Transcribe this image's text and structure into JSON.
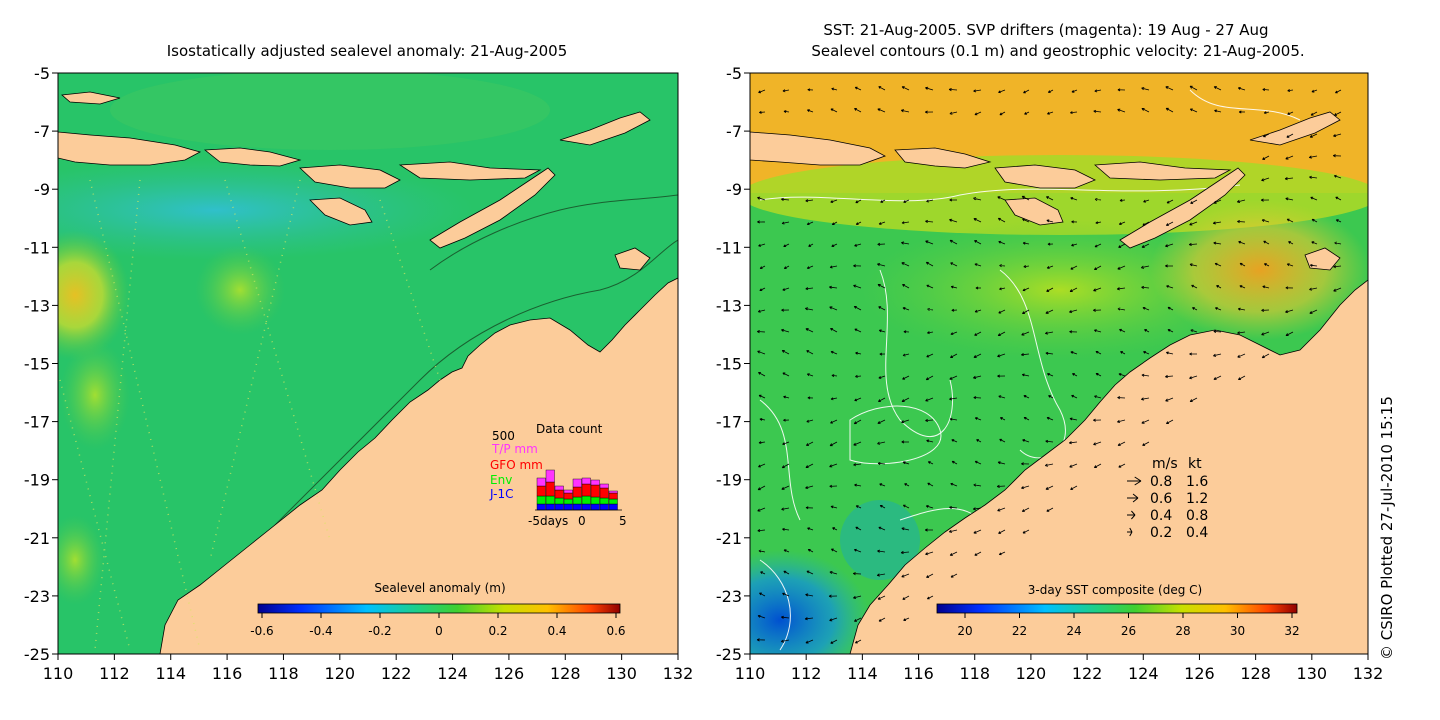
{
  "left_panel": {
    "title": "Isostatically adjusted sealevel anomaly: 21-Aug-2005",
    "x_ticks": [
      "110",
      "112",
      "114",
      "116",
      "118",
      "120",
      "122",
      "124",
      "126",
      "128",
      "130",
      "132"
    ],
    "y_ticks": [
      "-5",
      "-7",
      "-9",
      "-11",
      "-13",
      "-15",
      "-17",
      "-19",
      "-21",
      "-23",
      "-25"
    ],
    "colorbar": {
      "label": "Sealevel anomaly (m)",
      "ticks": [
        "-0.6",
        "-0.4",
        "-0.2",
        "0",
        "0.2",
        "0.4",
        "0.6"
      ]
    },
    "data_count": {
      "title": "Data count",
      "ymax_label": "500",
      "series": [
        {
          "name": "T/P mm",
          "color": "#ff33ff"
        },
        {
          "name": "GFO mm",
          "color": "#ff0000"
        },
        {
          "name": "Env",
          "color": "#00ee00"
        },
        {
          "name": "J-1C",
          "color": "#0000ff"
        }
      ],
      "x_labels": [
        "-5days",
        "0",
        "5"
      ]
    }
  },
  "right_panel": {
    "title_line1": "SST: 21-Aug-2005. SVP drifters (magenta): 19 Aug - 27 Aug",
    "title_line2": "Sealevel contours (0.1 m) and geostrophic velocity: 21-Aug-2005.",
    "x_ticks": [
      "110",
      "112",
      "114",
      "116",
      "118",
      "120",
      "122",
      "124",
      "126",
      "128",
      "130",
      "132"
    ],
    "y_ticks": [
      "-5",
      "-7",
      "-9",
      "-11",
      "-13",
      "-15",
      "-17",
      "-19",
      "-21",
      "-23",
      "-25"
    ],
    "colorbar": {
      "label": "3-day SST composite (deg C)",
      "ticks": [
        "20",
        "22",
        "24",
        "26",
        "28",
        "30",
        "32"
      ]
    },
    "velocity_legend": {
      "header_ms": "m/s",
      "header_kt": "kt",
      "rows": [
        {
          "ms": "0.8",
          "kt": "1.6"
        },
        {
          "ms": "0.6",
          "kt": "1.2"
        },
        {
          "ms": "0.4",
          "kt": "0.8"
        },
        {
          "ms": "0.2",
          "kt": "0.4"
        }
      ]
    }
  },
  "credit": "© CSIRO Plotted 27-Jul-2010 15:15",
  "colors": {
    "land": "#fccc9a",
    "sea_green": "#22c46a",
    "sst_orange": "#f0b020"
  }
}
